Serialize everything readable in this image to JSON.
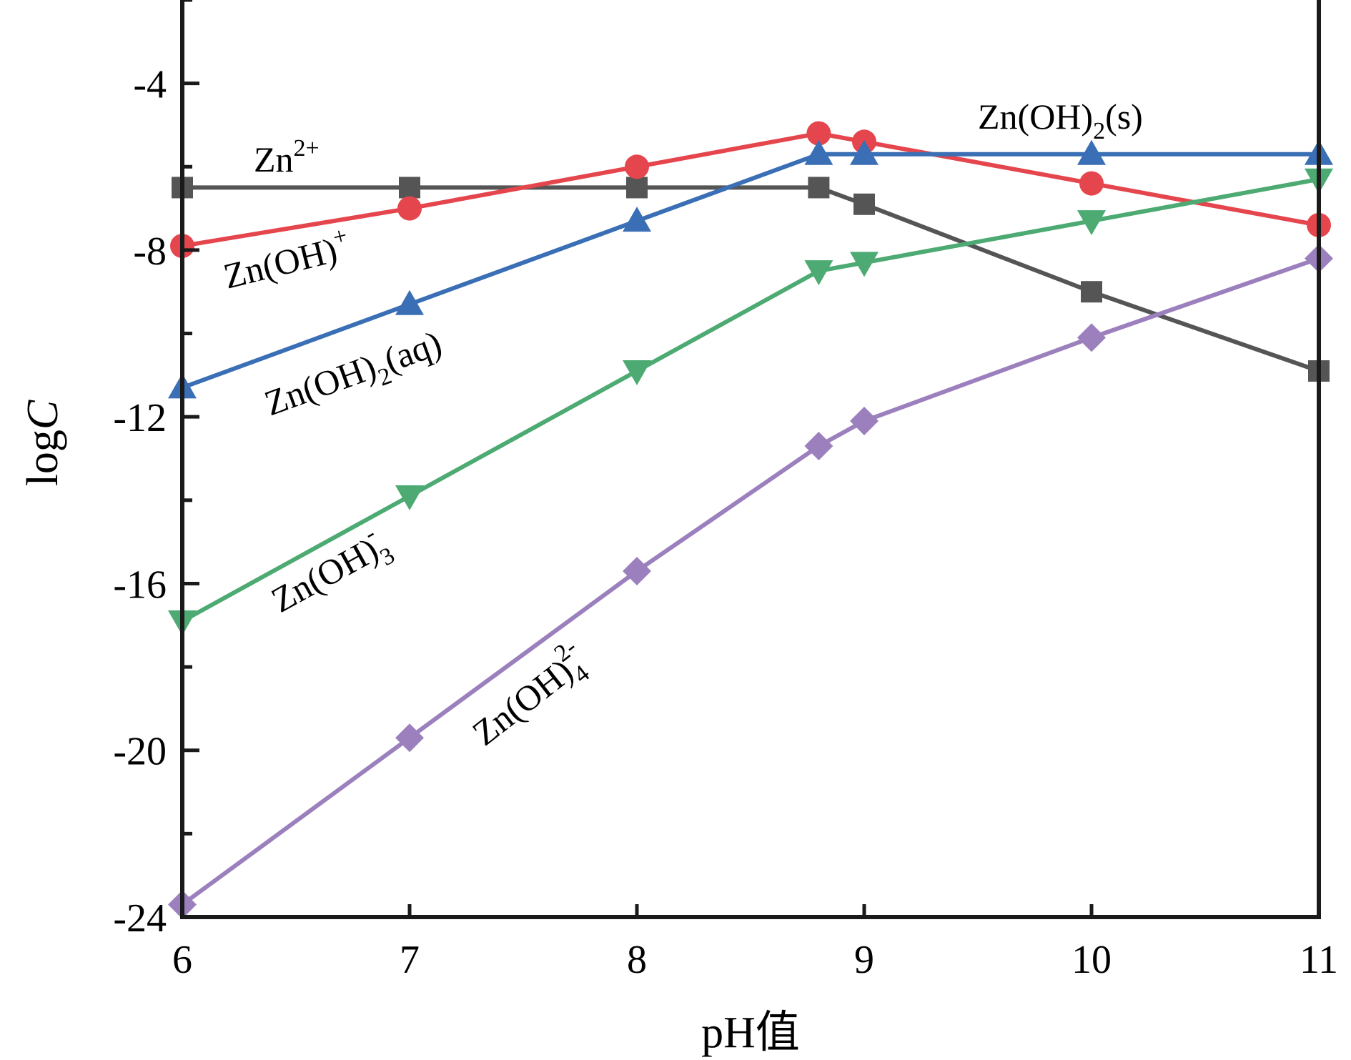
{
  "chart_data": {
    "type": "line",
    "xlabel": "pH值",
    "ylabel_main": "log",
    "ylabel_italic": "C",
    "xlim": [
      6,
      11
    ],
    "ylim": [
      -24,
      -2
    ],
    "xticks": [
      6,
      7,
      8,
      9,
      10,
      11
    ],
    "yticks": [
      -4,
      -8,
      -12,
      -16,
      -20,
      -24
    ],
    "yticks_minor": [
      -2,
      -6,
      -10,
      -14,
      -18,
      -22
    ],
    "x": [
      6,
      7,
      8,
      8.8,
      9,
      10,
      11
    ],
    "grid": false,
    "legend": "none",
    "series": [
      {
        "key": "zn2",
        "color": "#555555",
        "marker": "square",
        "values": [
          -6.5,
          -6.5,
          -6.5,
          -6.5,
          -6.9,
          -9.0,
          -10.9
        ]
      },
      {
        "key": "znoh",
        "color": "#e5464d",
        "marker": "circle",
        "values": [
          -7.9,
          -7.0,
          -6.0,
          -5.2,
          -5.4,
          -6.4,
          -7.4
        ]
      },
      {
        "key": "znoh2aq",
        "color": "#3a6fb5",
        "marker": "triangle-up",
        "values": [
          -11.3,
          -9.3,
          -7.3,
          -5.7,
          -5.7,
          -5.7,
          -5.7
        ]
      },
      {
        "key": "znoh3",
        "color": "#4caa72",
        "marker": "triangle-down",
        "values": [
          -16.9,
          -13.9,
          -10.9,
          -8.5,
          -8.3,
          -7.3,
          -6.3
        ]
      },
      {
        "key": "znoh4",
        "color": "#9b80bd",
        "marker": "diamond",
        "values": [
          -23.7,
          -19.7,
          -15.7,
          -12.7,
          -12.1,
          -10.1,
          -8.2
        ]
      }
    ],
    "annotations": [
      {
        "key": "zn2",
        "base": "Zn",
        "sup": "2+",
        "sub": ""
      },
      {
        "key": "znoh",
        "base": "Zn(OH)",
        "sup": "+",
        "sub": ""
      },
      {
        "key": "znoh2aq",
        "base": "Zn(OH)",
        "sub": "2",
        "tail": "(aq)",
        "sup": ""
      },
      {
        "key": "znoh3",
        "base": "Zn(OH)",
        "sub": "3",
        "sup": "-"
      },
      {
        "key": "znoh4",
        "base": "Zn(OH)",
        "sub": "4",
        "sup": "2-"
      },
      {
        "key": "znoh2s",
        "base": "Zn(OH)",
        "sub": "2",
        "tail": "(s)",
        "sup": ""
      }
    ]
  }
}
